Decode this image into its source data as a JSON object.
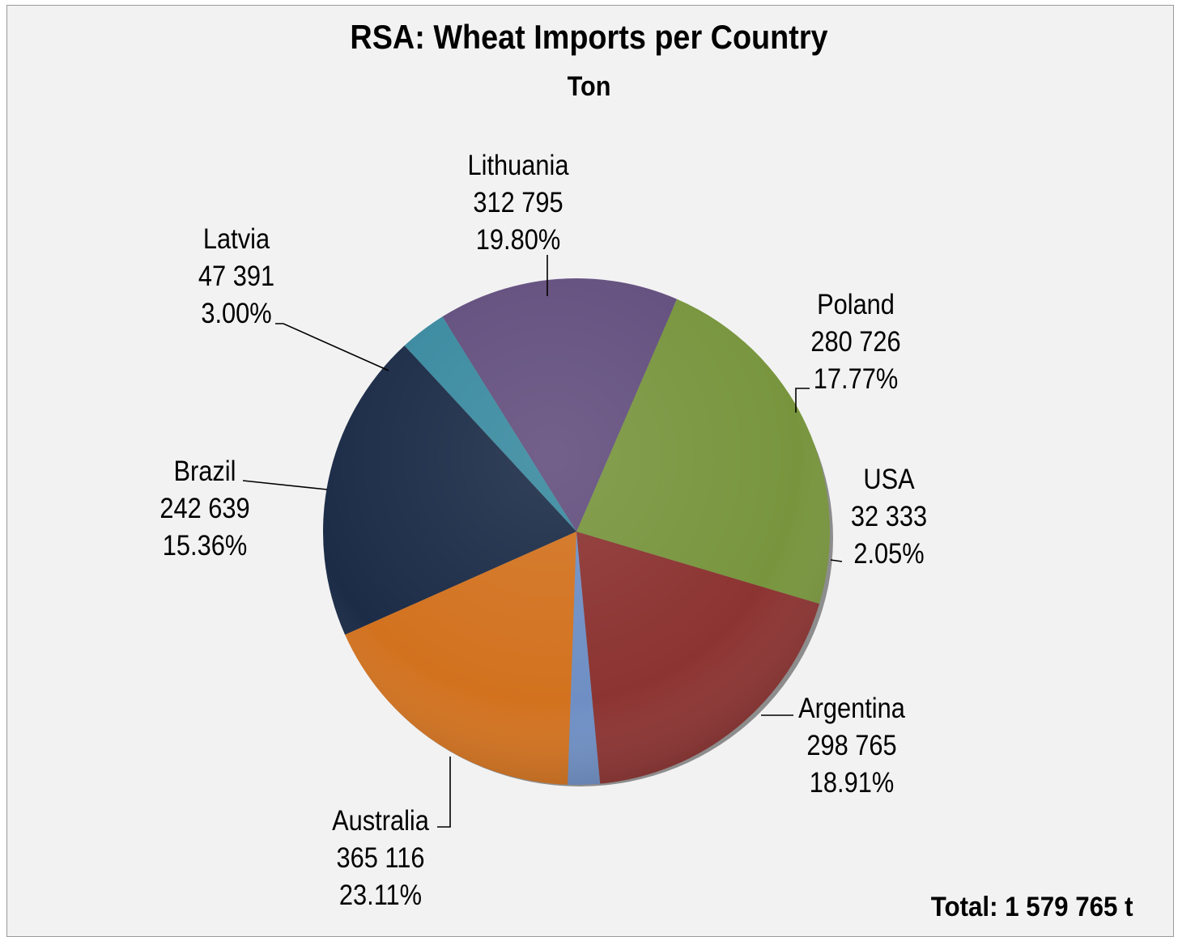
{
  "chart_data": {
    "type": "pie",
    "title": "RSA: Wheat Imports per Country",
    "subtitle": "Ton",
    "slices": [
      {
        "label": "USA",
        "value_text": "32 333",
        "percent_text": "2.05%",
        "value": 32333,
        "percent": 2.05,
        "color": "#6f8fc4"
      },
      {
        "label": "Argentina",
        "value_text": "298 765",
        "percent_text": "18.91%",
        "value": 298765,
        "percent": 18.91,
        "color": "#8c3432"
      },
      {
        "label": "Australia",
        "value_text": "365 116",
        "percent_text": "23.11%",
        "value": 365116,
        "percent": 23.11,
        "color": "#78953e"
      },
      {
        "label": "Brazil",
        "value_text": "242 639",
        "percent_text": "15.36%",
        "value": 242639,
        "percent": 15.36,
        "color": "#634f7e"
      },
      {
        "label": "Latvia",
        "value_text": "47 391",
        "percent_text": "3.00%",
        "value": 47391,
        "percent": 3.0,
        "color": "#3a8aa0"
      },
      {
        "label": "Lithuania",
        "value_text": "312 795",
        "percent_text": "19.80%",
        "value": 312795,
        "percent": 19.8,
        "color": "#1c2c47"
      },
      {
        "label": "Poland",
        "value_text": "280 726",
        "percent_text": "17.77%",
        "value": 280726,
        "percent": 17.77,
        "color": "#d2721f"
      }
    ],
    "total_text": "Total:  1 579 765 t"
  }
}
